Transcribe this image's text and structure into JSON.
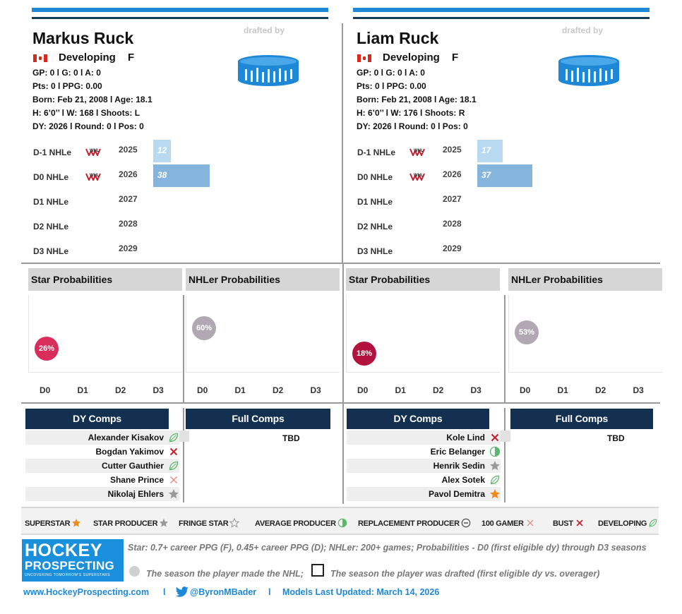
{
  "players": [
    {
      "name": "Markus Ruck",
      "status": "Developing",
      "position": "F",
      "drafted_by": "drafted by",
      "line1": "GP: 0 l G: 0 l A: 0",
      "line2": "Pts: 0 l PPG: 0.00",
      "line3": "Born: Feb 21, 2008 l Age: 18.1",
      "line4": "H: 6’0’’ l W: 168 l Shoots: L",
      "line5": "DY: 2026 l Round: 0 l Pos: 0",
      "nhle": [
        {
          "label": "D-1 NHLe",
          "year": "2025",
          "value": 12,
          "display": "12",
          "league_logo": true
        },
        {
          "label": "D0 NHLe",
          "year": "2026",
          "value": 38,
          "display": "38",
          "league_logo": true
        },
        {
          "label": "D1 NHLe",
          "year": "2027",
          "value": null,
          "display": "",
          "league_logo": false
        },
        {
          "label": "D2 NHLe",
          "year": "2028",
          "value": null,
          "display": "",
          "league_logo": false
        },
        {
          "label": "D3 NHLe",
          "year": "2029",
          "value": null,
          "display": "",
          "league_logo": false
        }
      ],
      "star_prob_title": "Star Probabilities",
      "nhler_prob_title": "NHLer Probabilities",
      "star_prob": {
        "season": "D0",
        "value": 26,
        "label": "26%",
        "color": "#d92e5c"
      },
      "nhler_prob": {
        "season": "D0",
        "value": 60,
        "label": "60%",
        "color": "#b2a8b4"
      },
      "dy_comps_title": "DY Comps",
      "full_comps_title": "Full Comps",
      "full_comps": "TBD",
      "dy_comps": [
        {
          "name": "Alexander Kisakov",
          "icon": "developing-leaf-icon"
        },
        {
          "name": "Bogdan Yakimov",
          "icon": "bust-x-icon"
        },
        {
          "name": "Cutter Gauthier",
          "icon": "developing-leaf-icon"
        },
        {
          "name": "Shane Prince",
          "icon": "100-gamer-x-icon"
        },
        {
          "name": "Nikolaj Ehlers",
          "icon": "star-producer-icon"
        }
      ]
    },
    {
      "name": "Liam Ruck",
      "status": "Developing",
      "position": "F",
      "drafted_by": "drafted by",
      "line1": "GP: 0 l G: 0 l A: 0",
      "line2": "Pts: 0 l PPG: 0.00",
      "line3": "Born: Feb 21, 2008 l Age: 18.1",
      "line4": "H: 6’0’’ l W: 176 l Shoots: R",
      "line5": "DY: 2026 l Round: 0 l Pos: 0",
      "nhle": [
        {
          "label": "D-1 NHLe",
          "year": "2025",
          "value": 17,
          "display": "17",
          "league_logo": true
        },
        {
          "label": "D0 NHLe",
          "year": "2026",
          "value": 37,
          "display": "37",
          "league_logo": true
        },
        {
          "label": "D1 NHLe",
          "year": "2027",
          "value": null,
          "display": "",
          "league_logo": false
        },
        {
          "label": "D2 NHLe",
          "year": "2028",
          "value": null,
          "display": "",
          "league_logo": false
        },
        {
          "label": "D3 NHLe",
          "year": "2029",
          "value": null,
          "display": "",
          "league_logo": false
        }
      ],
      "star_prob_title": "Star Probabilities",
      "nhler_prob_title": "NHLer Probabilities",
      "star_prob": {
        "season": "D0",
        "value": 18,
        "label": "18%",
        "color": "#b3123f"
      },
      "nhler_prob": {
        "season": "D0",
        "value": 53,
        "label": "53%",
        "color": "#b2a8b4"
      },
      "dy_comps_title": "DY Comps",
      "full_comps_title": "Full Comps",
      "full_comps": "TBD",
      "dy_comps": [
        {
          "name": "Kole Lind",
          "icon": "bust-x-icon"
        },
        {
          "name": "Eric Belanger",
          "icon": "average-producer-icon"
        },
        {
          "name": "Henrik Sedin",
          "icon": "star-producer-icon"
        },
        {
          "name": "Alex Sotek",
          "icon": "developing-leaf-icon"
        },
        {
          "name": "Pavol Demitra",
          "icon": "superstar-icon"
        }
      ]
    }
  ],
  "season_labels": [
    "D0",
    "D1",
    "D2",
    "D3"
  ],
  "legend": [
    {
      "label": "SUPERSTAR",
      "icon": "superstar-icon"
    },
    {
      "label": "STAR PRODUCER",
      "icon": "star-producer-icon"
    },
    {
      "label": "FRINGE STAR",
      "icon": "fringe-star-icon"
    },
    {
      "label": "AVERAGE PRODUCER",
      "icon": "average-producer-icon"
    },
    {
      "label": "REPLACEMENT PRODUCER",
      "icon": "replacement-producer-icon"
    },
    {
      "label": "100 GAMER",
      "icon": "100-gamer-x-icon"
    },
    {
      "label": "BUST",
      "icon": "bust-x-icon"
    },
    {
      "label": "DEVELOPING",
      "icon": "developing-leaf-icon"
    }
  ],
  "logo": {
    "line1": "HOCKEY",
    "line2": "PROSPECTING",
    "tagline": "UNCOVERING TOMORROW'S SUPERSTARS"
  },
  "notes": {
    "definition": "Star: 0.7+ career PPG (F), 0.45+ career PPG (D); NHLer: 200+ games; Probabilities - D0 (first eligible dy) through D3 seasons",
    "made_nhl": "The season the player made the NHL;",
    "drafted": "The season the player was drafted (first eligible dy vs. overager)"
  },
  "footer": {
    "website": "www.HockeyProspecting.com",
    "separator": "l",
    "twitter": "@ByronMBader",
    "updated": "Models Last Updated: March 14, 2026"
  },
  "colors": {
    "accent_blue": "#1f88d6",
    "navy": "#143050",
    "bar_light": "#b9d9f0",
    "bar_mid": "#85b5dc"
  }
}
